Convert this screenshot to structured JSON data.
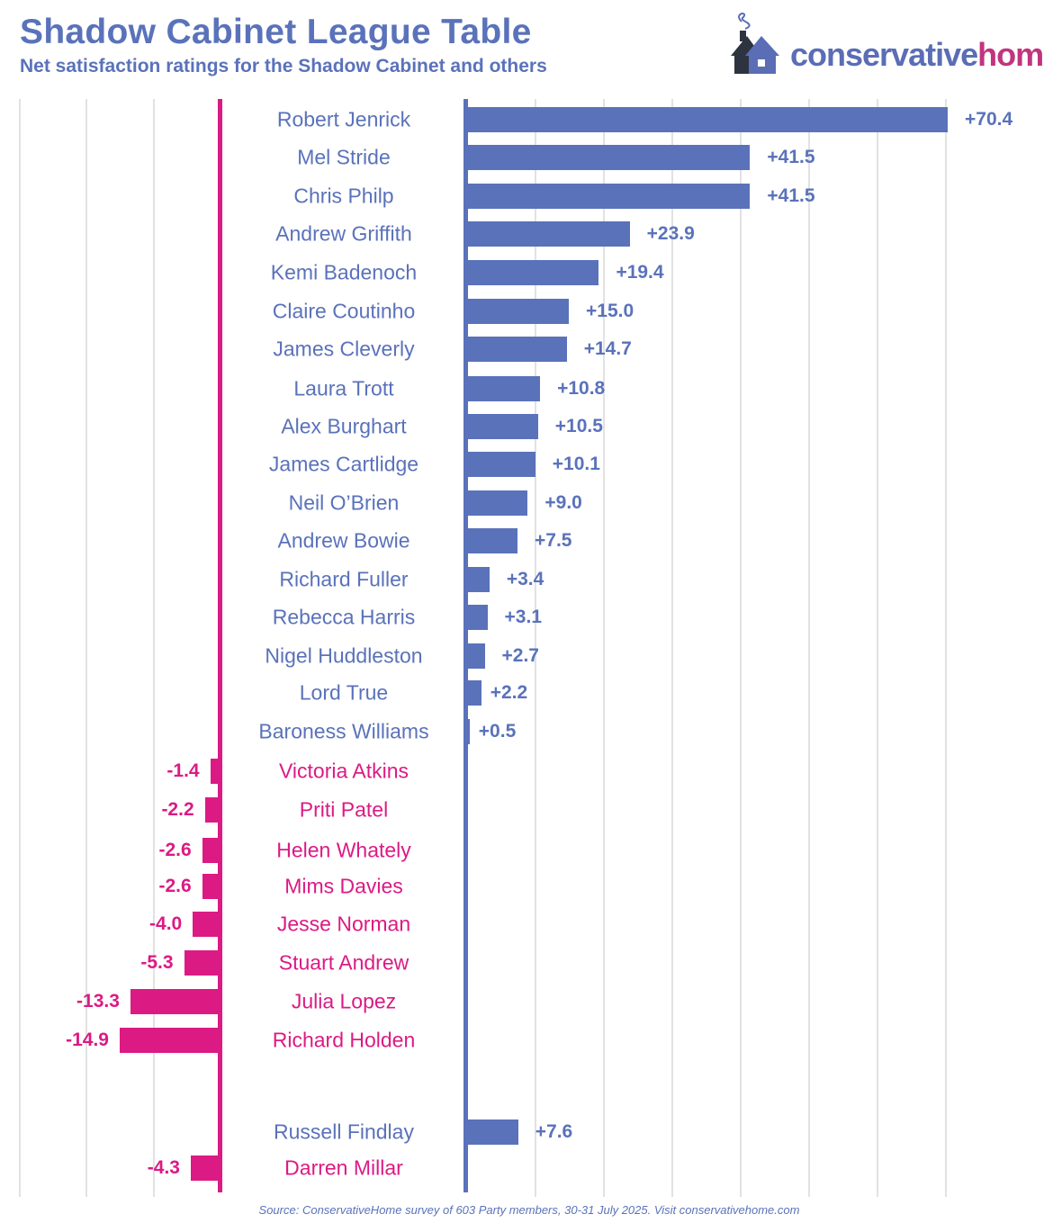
{
  "header": {
    "title": "Shadow Cabinet League Table",
    "subtitle": "Net satisfaction ratings for the Shadow Cabinet and others"
  },
  "logo": {
    "text_a": "conservative",
    "text_b": "home"
  },
  "colors": {
    "positive": "#5a72ba",
    "negative": "#dc1a84",
    "grid": "#e2e2e2"
  },
  "chart_data": {
    "type": "bar",
    "title": "Shadow Cabinet League Table",
    "subtitle": "Net satisfaction ratings for the Shadow Cabinet and others",
    "xlabel": "",
    "ylabel": "Net satisfaction",
    "grid": true,
    "categories": [
      "Robert Jenrick",
      "Mel Stride",
      "Chris Philp",
      "Andrew Griffith",
      "Kemi Badenoch",
      "Claire Coutinho",
      "James Cleverly",
      "Laura Trott",
      "Alex Burghart",
      "James Cartlidge",
      "Neil O’Brien",
      "Andrew Bowie",
      "Richard Fuller",
      "Rebecca Harris",
      "Nigel Huddleston",
      "Lord True",
      "Baroness Williams",
      "Victoria Atkins",
      "Priti Patel",
      "Helen Whately",
      "Mims Davies",
      "Jesse Norman",
      "Stuart Andrew",
      "Julia Lopez",
      "Richard Holden",
      "Russell Findlay",
      "Darren Millar"
    ],
    "values": [
      70.4,
      41.5,
      41.5,
      23.9,
      19.4,
      15.0,
      14.7,
      10.8,
      10.5,
      10.1,
      9.0,
      7.5,
      3.4,
      3.1,
      2.7,
      2.2,
      0.5,
      -1.4,
      -2.2,
      -2.6,
      -2.6,
      -4.0,
      -5.3,
      -13.3,
      -14.9,
      7.6,
      -4.3
    ],
    "labels": [
      "+70.4",
      "+41.5",
      "+41.5",
      "+23.9",
      "+19.4",
      "+15.0",
      "+14.7",
      "+10.8",
      "+10.5",
      "+10.1",
      "+9.0",
      "+7.5",
      "+3.4",
      "+3.1",
      "+2.7",
      "+2.2",
      "+0.5",
      "-1.4",
      "-2.2",
      "-2.6",
      "-2.6",
      "-4.0",
      "-5.3",
      "-13.3",
      "-14.9",
      "+7.6",
      "-4.3"
    ],
    "xlim": [
      -30,
      70
    ]
  },
  "footer": {
    "source": "Source: ConservativeHome survey of 603 Party members, 30-31 July 2025. Visit conservativehome.com"
  }
}
